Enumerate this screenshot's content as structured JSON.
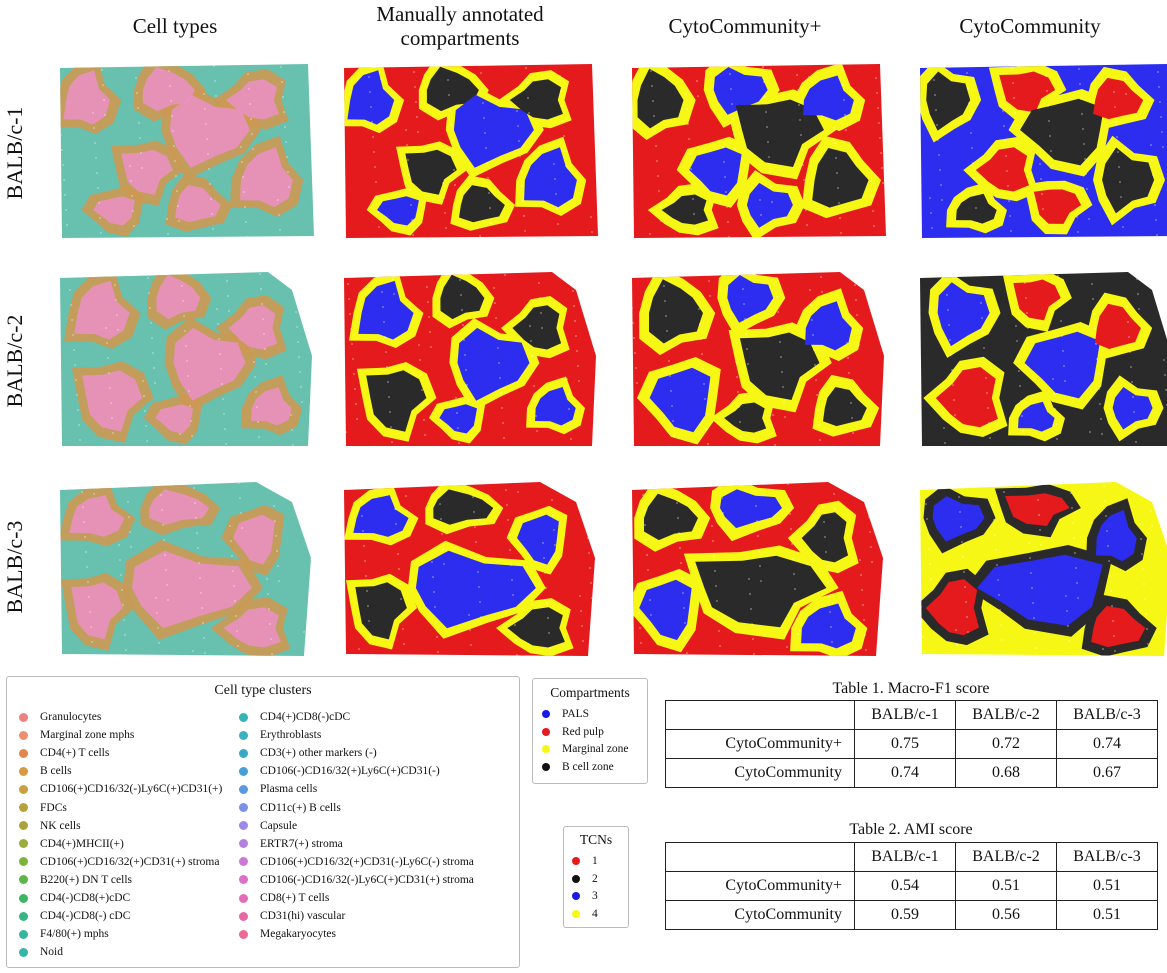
{
  "column_titles": [
    "Cell types",
    "Manually annotated compartments",
    "CytoCommunity+",
    "CytoCommunity"
  ],
  "row_labels": [
    "BALB/c-1",
    "BALB/c-2",
    "BALB/c-3"
  ],
  "palette": {
    "pals": "#2d2df0",
    "red_pulp": "#e41a1c",
    "marginal_zone": "#f7f716",
    "b_cell_zone": "#2a2a2a",
    "cell_pink": "#e991c0",
    "cell_orange": "#cc9952",
    "cell_teal": "#4eb5a0"
  },
  "cell_legend": {
    "title": "Cell type clusters",
    "items": [
      {
        "label": "Granulocytes",
        "color": "#e8837f"
      },
      {
        "label": "Marginal zone mphs",
        "color": "#e89070"
      },
      {
        "label": "CD4(+) T cells",
        "color": "#e0884e"
      },
      {
        "label": "B cells",
        "color": "#d69a40"
      },
      {
        "label": "CD106(+)CD16/32(-)Ly6C(+)CD31(+)",
        "color": "#c8a040"
      },
      {
        "label": "FDCs",
        "color": "#b8a13a"
      },
      {
        "label": "NK cells",
        "color": "#a9a33a"
      },
      {
        "label": "CD4(+)MHCII(+)",
        "color": "#98ad3a"
      },
      {
        "label": "CD106(+)CD16/32(+)CD31(+) stroma",
        "color": "#7db33a"
      },
      {
        "label": "B220(+) DN T cells",
        "color": "#5cb548"
      },
      {
        "label": "CD4(-)CD8(+)cDC",
        "color": "#3cb565"
      },
      {
        "label": "CD4(-)CD8(-) cDC",
        "color": "#35b585"
      },
      {
        "label": "F4/80(+) mphs",
        "color": "#36b59b"
      },
      {
        "label": "Noid",
        "color": "#35b5a8"
      },
      {
        "label": "CD4(+)CD8(-)cDC",
        "color": "#36b3b3"
      },
      {
        "label": "Erythroblasts",
        "color": "#3ab0c0"
      },
      {
        "label": "CD3(+) other markers (-)",
        "color": "#3aa8c8"
      },
      {
        "label": "CD106(-)CD16/32(+)Ly6C(+)CD31(-)",
        "color": "#45a0d8"
      },
      {
        "label": "Plasma cells",
        "color": "#5a98e0"
      },
      {
        "label": "CD11c(+) B cells",
        "color": "#7b90e6"
      },
      {
        "label": "Capsule",
        "color": "#9c88e6"
      },
      {
        "label": "ERTR7(+) stroma",
        "color": "#b480e0"
      },
      {
        "label": "CD106(+)CD16/32(+)CD31(-)Ly6C(-) stroma",
        "color": "#cb78d8"
      },
      {
        "label": "CD106(-)CD16/32(-)Ly6C(+)CD31(+) stroma",
        "color": "#dc70c8"
      },
      {
        "label": "CD8(+) T cells",
        "color": "#e46bb5"
      },
      {
        "label": "CD31(hi) vascular",
        "color": "#e868a5"
      },
      {
        "label": "Megakaryocytes",
        "color": "#ea6a95"
      }
    ]
  },
  "compartment_legend": {
    "title": "Compartments",
    "items": [
      {
        "label": "PALS",
        "color": "#1a1ae6"
      },
      {
        "label": "Red pulp",
        "color": "#e41a1c"
      },
      {
        "label": "Marginal zone",
        "color": "#f7f716"
      },
      {
        "label": "B cell zone",
        "color": "#111111"
      }
    ]
  },
  "tcn_legend": {
    "title": "TCNs",
    "items": [
      {
        "label": "1",
        "color": "#e41a1c"
      },
      {
        "label": "2",
        "color": "#111111"
      },
      {
        "label": "3",
        "color": "#1a1ae6"
      },
      {
        "label": "4",
        "color": "#f7f716"
      }
    ]
  },
  "table1": {
    "caption": "Table 1. Macro-F1 score",
    "headers": [
      "",
      "BALB/c-1",
      "BALB/c-2",
      "BALB/c-3"
    ],
    "rows": [
      [
        "CytoCommunity+",
        "0.75",
        "0.72",
        "0.74"
      ],
      [
        "CytoCommunity",
        "0.74",
        "0.68",
        "0.67"
      ]
    ]
  },
  "table2": {
    "caption": "Table 2. AMI score",
    "headers": [
      "",
      "BALB/c-1",
      "BALB/c-2",
      "BALB/c-3"
    ],
    "rows": [
      [
        "CytoCommunity+",
        "0.54",
        "0.51",
        "0.51"
      ],
      [
        "CytoCommunity",
        "0.59",
        "0.56",
        "0.51"
      ]
    ]
  }
}
